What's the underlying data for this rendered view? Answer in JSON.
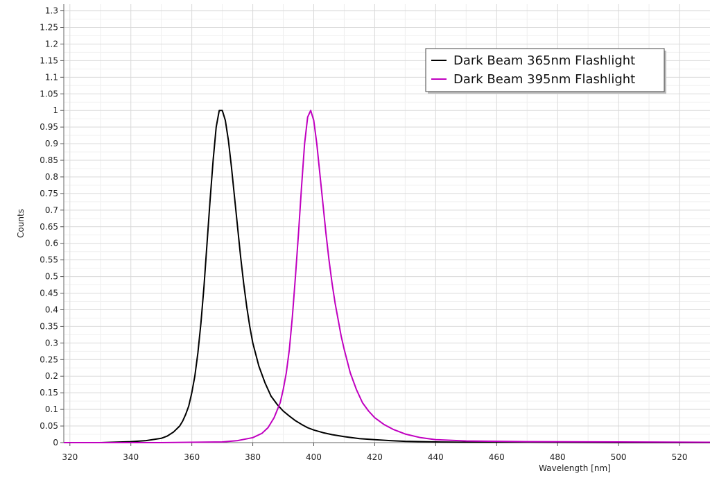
{
  "chart_data": {
    "type": "line",
    "title": "",
    "xlabel": "Wavelength [nm]",
    "ylabel": "Counts",
    "xlim": [
      318,
      530
    ],
    "ylim": [
      0,
      1.32
    ],
    "grid": true,
    "legend_position": "top-right",
    "x_ticks": [
      "320",
      "340",
      "360",
      "380",
      "400",
      "420",
      "440",
      "460",
      "480",
      "500",
      "520"
    ],
    "y_ticks": [
      "0",
      "0.05",
      "0.1",
      "0.15",
      "0.2",
      "0.25",
      "0.3",
      "0.35",
      "0.4",
      "0.45",
      "0.5",
      "0.55",
      "0.6",
      "0.65",
      "0.7",
      "0.75",
      "0.8",
      "0.85",
      "0.9",
      "0.95",
      "1",
      "1.05",
      "1.1",
      "1.15",
      "1.2",
      "1.25",
      "1.3"
    ],
    "series": [
      {
        "name": "Dark Beam 365nm Flashlight",
        "color": "#000000",
        "x": [
          318,
          330,
          340,
          345,
          350,
          352,
          354,
          356,
          357,
          358,
          359,
          360,
          361,
          362,
          363,
          364,
          365,
          366,
          367,
          368,
          369,
          370,
          371,
          372,
          373,
          374,
          375,
          376,
          377,
          378,
          379,
          380,
          382,
          384,
          386,
          388,
          390,
          392,
          394,
          396,
          398,
          400,
          403,
          406,
          410,
          415,
          420,
          425,
          430,
          440,
          450,
          470,
          500,
          530
        ],
        "y": [
          0.0,
          0.0,
          0.003,
          0.006,
          0.013,
          0.02,
          0.032,
          0.05,
          0.065,
          0.085,
          0.11,
          0.15,
          0.2,
          0.27,
          0.36,
          0.47,
          0.6,
          0.73,
          0.85,
          0.95,
          1.0,
          1.0,
          0.97,
          0.91,
          0.83,
          0.74,
          0.65,
          0.56,
          0.48,
          0.41,
          0.35,
          0.3,
          0.23,
          0.18,
          0.14,
          0.115,
          0.095,
          0.08,
          0.066,
          0.055,
          0.045,
          0.038,
          0.03,
          0.024,
          0.018,
          0.012,
          0.009,
          0.006,
          0.004,
          0.002,
          0.001,
          0.001,
          0.0,
          0.0
        ]
      },
      {
        "name": "Dark Beam 395nm Flashlight",
        "color": "#c000c0",
        "x": [
          318,
          350,
          370,
          375,
          380,
          383,
          385,
          387,
          389,
          390,
          391,
          392,
          393,
          394,
          395,
          396,
          397,
          398,
          399,
          400,
          401,
          402,
          403,
          404,
          405,
          406,
          407,
          408,
          409,
          410,
          412,
          414,
          416,
          418,
          420,
          423,
          426,
          430,
          435,
          440,
          450,
          470,
          500,
          530
        ],
        "y": [
          0.0,
          0.0,
          0.002,
          0.006,
          0.015,
          0.028,
          0.045,
          0.075,
          0.12,
          0.16,
          0.21,
          0.28,
          0.38,
          0.5,
          0.63,
          0.77,
          0.9,
          0.98,
          1.0,
          0.97,
          0.9,
          0.81,
          0.72,
          0.63,
          0.55,
          0.48,
          0.42,
          0.37,
          0.32,
          0.28,
          0.21,
          0.16,
          0.12,
          0.095,
          0.075,
          0.055,
          0.04,
          0.026,
          0.015,
          0.009,
          0.005,
          0.003,
          0.002,
          0.001
        ]
      }
    ]
  }
}
